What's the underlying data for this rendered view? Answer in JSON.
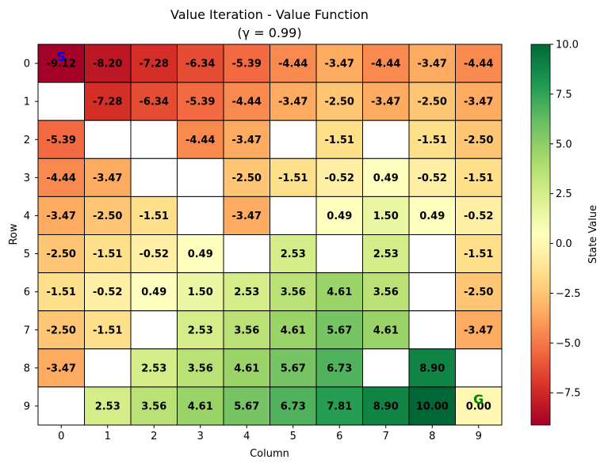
{
  "chart_data": {
    "type": "heatmap",
    "title": "Value Iteration - Value Function",
    "subtitle": "(γ = 0.99)",
    "xlabel": "Column",
    "ylabel": "Row",
    "x_tick_labels": [
      "0",
      "1",
      "2",
      "3",
      "4",
      "5",
      "6",
      "7",
      "8",
      "9"
    ],
    "y_tick_labels": [
      "0",
      "1",
      "2",
      "3",
      "4",
      "5",
      "6",
      "7",
      "8",
      "9"
    ],
    "colorbar": {
      "label": "State Value",
      "colormap": "RdYlGn",
      "vmin": -9.12,
      "vmax": 10.0,
      "ticks": [
        10.0,
        7.5,
        5.0,
        2.5,
        0.0,
        -2.5,
        -5.0,
        -7.5
      ],
      "tick_labels": [
        "10.0",
        "7.5",
        "5.0",
        "2.5",
        "0.0",
        "−2.5",
        "−5.0",
        "−7.5"
      ]
    },
    "values": [
      [
        -9.12,
        -8.2,
        -7.28,
        -6.34,
        -5.39,
        -4.44,
        -3.47,
        -4.44,
        -3.47,
        -4.44
      ],
      [
        null,
        -7.28,
        -6.34,
        -5.39,
        -4.44,
        -3.47,
        -2.5,
        -3.47,
        -2.5,
        -3.47
      ],
      [
        -5.39,
        null,
        null,
        -4.44,
        -3.47,
        null,
        -1.51,
        null,
        -1.51,
        -2.5
      ],
      [
        -4.44,
        -3.47,
        null,
        null,
        -2.5,
        -1.51,
        -0.52,
        0.49,
        -0.52,
        -1.51
      ],
      [
        -3.47,
        -2.5,
        -1.51,
        null,
        -3.47,
        null,
        0.49,
        1.5,
        0.49,
        -0.52
      ],
      [
        -2.5,
        -1.51,
        -0.52,
        0.49,
        null,
        2.53,
        null,
        2.53,
        null,
        -1.51
      ],
      [
        -1.51,
        -0.52,
        0.49,
        1.5,
        2.53,
        3.56,
        4.61,
        3.56,
        null,
        -2.5
      ],
      [
        -2.5,
        -1.51,
        null,
        2.53,
        3.56,
        4.61,
        5.67,
        4.61,
        null,
        -3.47
      ],
      [
        -3.47,
        null,
        2.53,
        3.56,
        4.61,
        5.67,
        6.73,
        null,
        8.9,
        null
      ],
      [
        null,
        2.53,
        3.56,
        4.61,
        5.67,
        6.73,
        7.81,
        8.9,
        10.0,
        0.0
      ]
    ],
    "markers": [
      {
        "text": "S",
        "row": 0,
        "col": 0,
        "color": "#0000ff"
      },
      {
        "text": "G",
        "row": 9,
        "col": 9,
        "color": "#008000"
      }
    ],
    "wall_color": "#ffffff",
    "grid": true
  }
}
